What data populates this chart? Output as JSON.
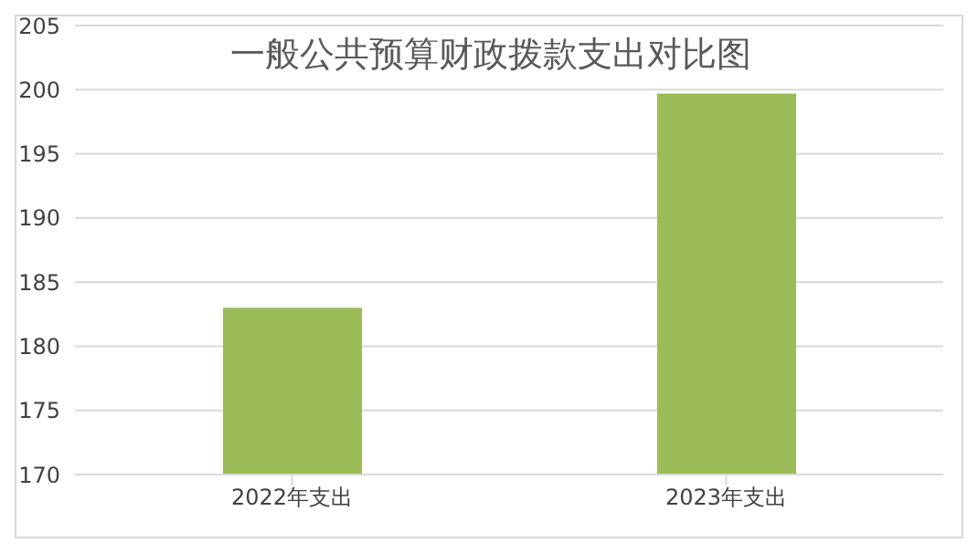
{
  "chart_data": {
    "type": "bar",
    "title": "一般公共预算财政拨款支出对比图",
    "categories": [
      "2022年支出",
      "2023年支出"
    ],
    "values": [
      183,
      199.7
    ],
    "color": "#9bbb59",
    "ylim": [
      170,
      205
    ],
    "yticks": [
      170,
      175,
      180,
      185,
      190,
      195,
      200,
      205
    ],
    "grid": "y"
  }
}
